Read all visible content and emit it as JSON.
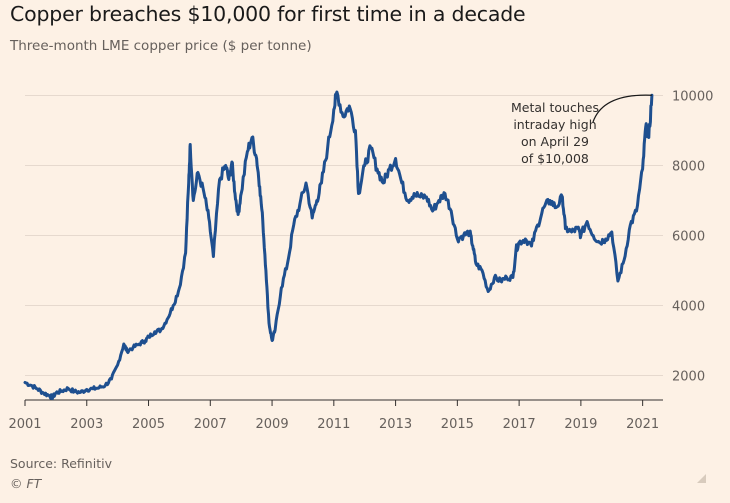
{
  "header": {
    "title": "Copper breaches $10,000 for first time in a decade",
    "subtitle": "Three-month LME copper price ($ per tonne)"
  },
  "footer": {
    "source": "Source: Refinitiv",
    "credit": "© FT"
  },
  "colors": {
    "background": "#fdf1e5",
    "line": "#1e4f8f",
    "grid": "#e6d9ce",
    "axis": "#33302e"
  },
  "chart_data": {
    "type": "line",
    "title": "Copper breaches $10,000 for first time in a decade",
    "subtitle": "Three-month LME copper price ($ per tonne)",
    "xlabel": "",
    "ylabel": "",
    "xlim": [
      2001,
      2021.4
    ],
    "ylim": [
      1300,
      10300
    ],
    "x_ticks": [
      2001,
      2003,
      2005,
      2007,
      2009,
      2011,
      2013,
      2015,
      2017,
      2019,
      2021
    ],
    "y_ticks": [
      2000,
      4000,
      6000,
      8000,
      10000
    ],
    "y_axis_position": "right",
    "grid": "horizontal",
    "legend": "none",
    "annotation": {
      "lines": [
        "Metal touches",
        "intraday high",
        "on April 29",
        "of $10,008"
      ],
      "x": 2021.3,
      "y": 10008
    },
    "series": [
      {
        "values": [
          [
            2001.0,
            1800
          ],
          [
            2001.2,
            1720
          ],
          [
            2001.4,
            1620
          ],
          [
            2001.6,
            1500
          ],
          [
            2001.8,
            1420
          ],
          [
            2001.9,
            1380
          ],
          [
            2002.0,
            1500
          ],
          [
            2002.2,
            1560
          ],
          [
            2002.4,
            1630
          ],
          [
            2002.6,
            1540
          ],
          [
            2002.8,
            1520
          ],
          [
            2003.0,
            1600
          ],
          [
            2003.2,
            1620
          ],
          [
            2003.4,
            1650
          ],
          [
            2003.6,
            1720
          ],
          [
            2003.8,
            1900
          ],
          [
            2004.0,
            2300
          ],
          [
            2004.2,
            2900
          ],
          [
            2004.3,
            2700
          ],
          [
            2004.5,
            2800
          ],
          [
            2004.7,
            2900
          ],
          [
            2004.9,
            3000
          ],
          [
            2005.0,
            3100
          ],
          [
            2005.2,
            3250
          ],
          [
            2005.4,
            3300
          ],
          [
            2005.6,
            3600
          ],
          [
            2005.8,
            4000
          ],
          [
            2006.0,
            4500
          ],
          [
            2006.2,
            5500
          ],
          [
            2006.3,
            7500
          ],
          [
            2006.35,
            8600
          ],
          [
            2006.45,
            7000
          ],
          [
            2006.6,
            7800
          ],
          [
            2006.8,
            7200
          ],
          [
            2006.95,
            6500
          ],
          [
            2007.1,
            5400
          ],
          [
            2007.3,
            7600
          ],
          [
            2007.5,
            8000
          ],
          [
            2007.6,
            7600
          ],
          [
            2007.7,
            8100
          ],
          [
            2007.8,
            7200
          ],
          [
            2007.9,
            6600
          ],
          [
            2008.0,
            7200
          ],
          [
            2008.2,
            8400
          ],
          [
            2008.35,
            8800
          ],
          [
            2008.5,
            8200
          ],
          [
            2008.6,
            7400
          ],
          [
            2008.7,
            6400
          ],
          [
            2008.8,
            5000
          ],
          [
            2008.9,
            3500
          ],
          [
            2009.0,
            3000
          ],
          [
            2009.1,
            3300
          ],
          [
            2009.3,
            4500
          ],
          [
            2009.5,
            5200
          ],
          [
            2009.7,
            6300
          ],
          [
            2009.9,
            6900
          ],
          [
            2010.1,
            7500
          ],
          [
            2010.3,
            6500
          ],
          [
            2010.45,
            7000
          ],
          [
            2010.6,
            7500
          ],
          [
            2010.8,
            8500
          ],
          [
            2011.0,
            9600
          ],
          [
            2011.1,
            10100
          ],
          [
            2011.3,
            9400
          ],
          [
            2011.5,
            9700
          ],
          [
            2011.7,
            9000
          ],
          [
            2011.8,
            7200
          ],
          [
            2012.0,
            8000
          ],
          [
            2012.2,
            8500
          ],
          [
            2012.4,
            7900
          ],
          [
            2012.6,
            7500
          ],
          [
            2012.8,
            7900
          ],
          [
            2013.0,
            8200
          ],
          [
            2013.2,
            7500
          ],
          [
            2013.4,
            7000
          ],
          [
            2013.6,
            7200
          ],
          [
            2013.8,
            7100
          ],
          [
            2014.0,
            7100
          ],
          [
            2014.2,
            6700
          ],
          [
            2014.4,
            7000
          ],
          [
            2014.6,
            7200
          ],
          [
            2014.8,
            6700
          ],
          [
            2015.0,
            5900
          ],
          [
            2015.2,
            6000
          ],
          [
            2015.4,
            6100
          ],
          [
            2015.5,
            5700
          ],
          [
            2015.6,
            5200
          ],
          [
            2015.8,
            5000
          ],
          [
            2016.0,
            4400
          ],
          [
            2016.2,
            4800
          ],
          [
            2016.4,
            4700
          ],
          [
            2016.6,
            4800
          ],
          [
            2016.8,
            4800
          ],
          [
            2016.9,
            5600
          ],
          [
            2017.0,
            5800
          ],
          [
            2017.2,
            5900
          ],
          [
            2017.4,
            5700
          ],
          [
            2017.6,
            6300
          ],
          [
            2017.8,
            6800
          ],
          [
            2018.0,
            7000
          ],
          [
            2018.2,
            6800
          ],
          [
            2018.4,
            7100
          ],
          [
            2018.5,
            6200
          ],
          [
            2018.7,
            6100
          ],
          [
            2018.9,
            6200
          ],
          [
            2019.0,
            6000
          ],
          [
            2019.2,
            6400
          ],
          [
            2019.4,
            6000
          ],
          [
            2019.6,
            5800
          ],
          [
            2019.8,
            5900
          ],
          [
            2020.0,
            6100
          ],
          [
            2020.2,
            4700
          ],
          [
            2020.4,
            5300
          ],
          [
            2020.6,
            6300
          ],
          [
            2020.8,
            6700
          ],
          [
            2021.0,
            7900
          ],
          [
            2021.1,
            9100
          ],
          [
            2021.2,
            8800
          ],
          [
            2021.3,
            10008
          ]
        ]
      }
    ]
  }
}
